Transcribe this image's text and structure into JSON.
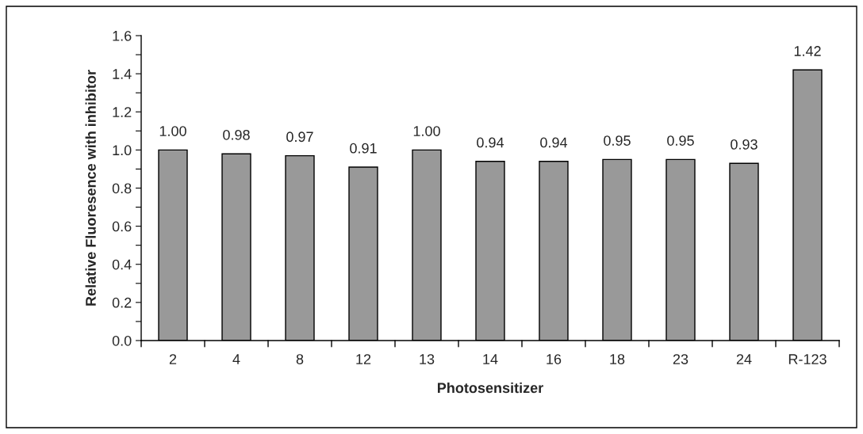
{
  "chart_data": {
    "type": "bar",
    "xlabel": "Photosensitizer",
    "ylabel": "Relative Fluoresence with inhibitor",
    "categories": [
      "2",
      "4",
      "8",
      "12",
      "13",
      "14",
      "16",
      "18",
      "23",
      "24",
      "R-123"
    ],
    "values": [
      1.0,
      0.98,
      0.97,
      0.91,
      1.0,
      0.94,
      0.94,
      0.95,
      0.95,
      0.93,
      1.42
    ],
    "value_labels": [
      "1.00",
      "0.98",
      "0.97",
      "0.91",
      "1.00",
      "0.94",
      "0.94",
      "0.95",
      "0.95",
      "0.93",
      "1.42"
    ],
    "color": "#999999",
    "ylim": [
      0,
      1.6
    ],
    "yticks": [
      {
        "value": 0,
        "label": "0.0"
      },
      {
        "value": 0.1,
        "label": null
      },
      0.2,
      {
        "value": 0.3,
        "label": null
      },
      0.4,
      {
        "value": 0.5,
        "label": null
      },
      0.6,
      {
        "value": 0.7,
        "label": null
      },
      0.8,
      {
        "value": 0.9,
        "label": null
      },
      {
        "value": 1,
        "label": "1.0"
      },
      {
        "value": 1.1,
        "label": null
      },
      1.2,
      {
        "value": 1.3,
        "label": null
      },
      1.4,
      {
        "value": 1.5,
        "label": null
      },
      1.6
    ],
    "grid": false,
    "legend": false
  }
}
